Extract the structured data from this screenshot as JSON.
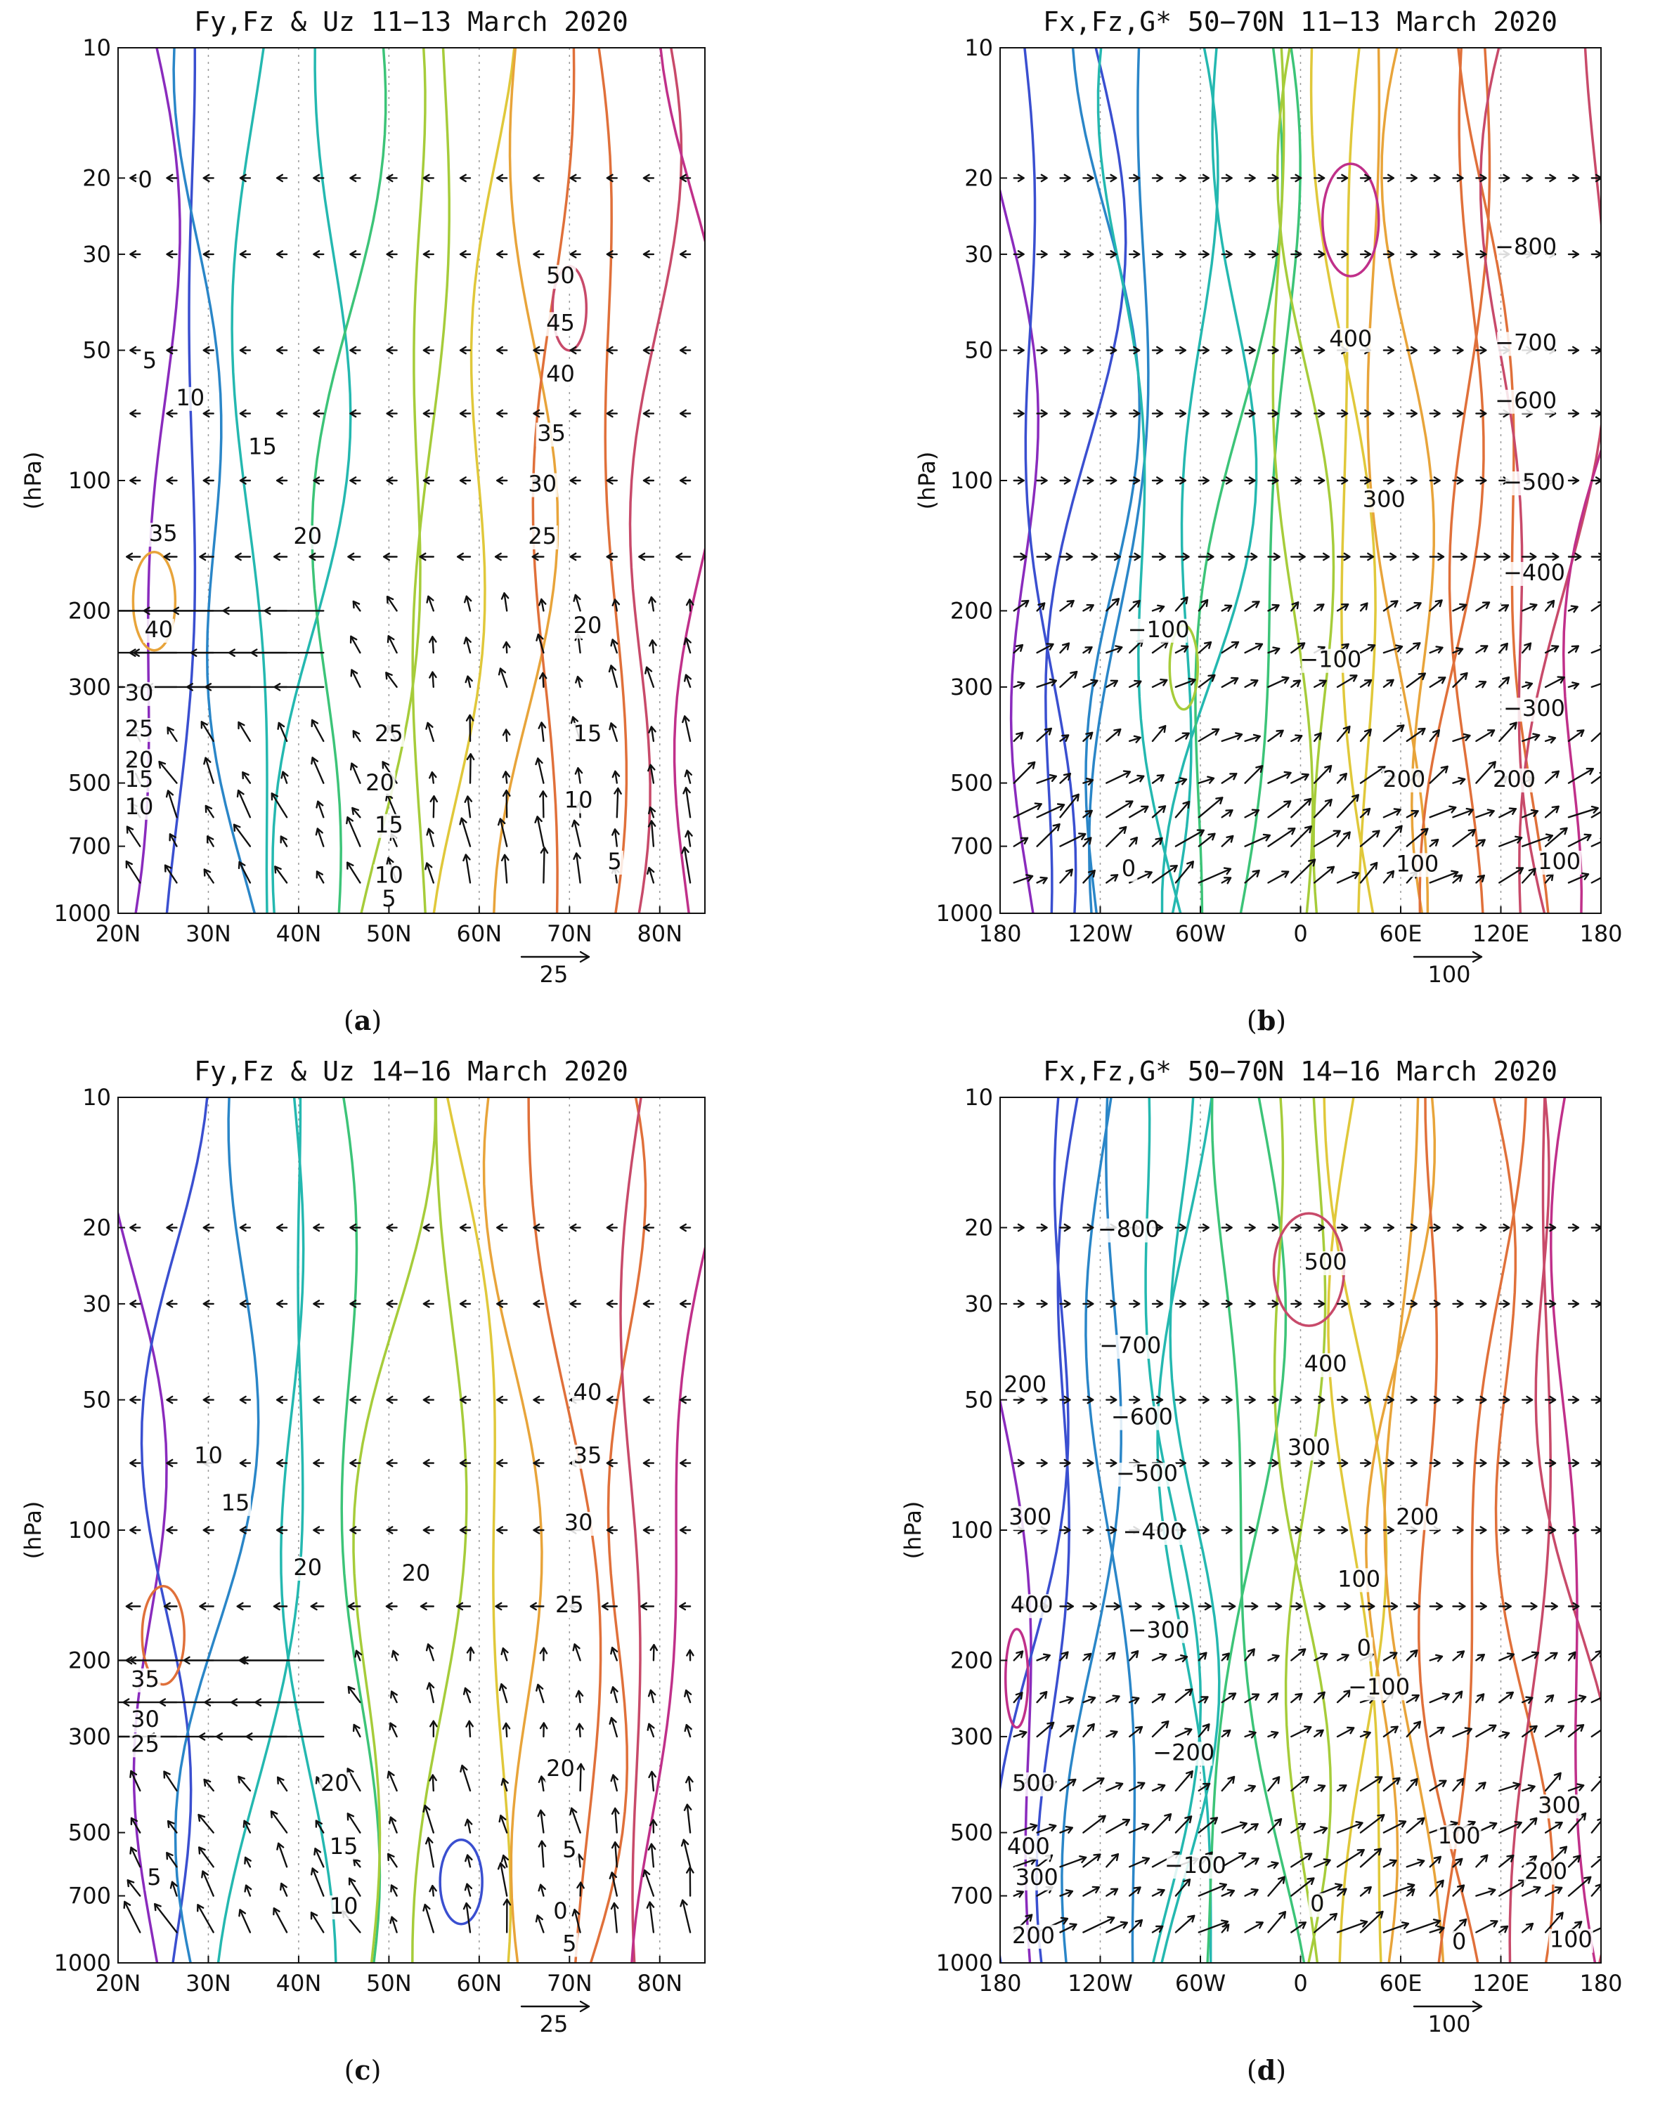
{
  "chart_data": [
    {
      "id": "a",
      "type": "contour",
      "title": "Fy,Fz & Uz 11−13 March 2020",
      "panel_label": "a",
      "xlabel": "",
      "ylabel": "(hPa)",
      "x_ticks": [
        "20N",
        "30N",
        "40N",
        "50N",
        "60N",
        "70N",
        "80N"
      ],
      "x_tick_values": [
        20,
        30,
        40,
        50,
        60,
        70,
        80
      ],
      "xlim": [
        20,
        85
      ],
      "y_ticks": [
        "10",
        "20",
        "30",
        "50",
        "100",
        "200",
        "300",
        "500",
        "700",
        "1000"
      ],
      "y_tick_values": [
        10,
        20,
        30,
        50,
        100,
        200,
        300,
        500,
        700,
        1000
      ],
      "ylim": [
        1000,
        10
      ],
      "y_scale": "log",
      "contour_labels": [
        {
          "text": "0",
          "x": 23,
          "p": 21
        },
        {
          "text": "5",
          "x": 23.5,
          "p": 55
        },
        {
          "text": "10",
          "x": 28,
          "p": 67
        },
        {
          "text": "15",
          "x": 36,
          "p": 87
        },
        {
          "text": "20",
          "x": 41,
          "p": 140
        },
        {
          "text": "25",
          "x": 67,
          "p": 140
        },
        {
          "text": "30",
          "x": 67,
          "p": 106
        },
        {
          "text": "35",
          "x": 68,
          "p": 81
        },
        {
          "text": "40",
          "x": 69,
          "p": 59
        },
        {
          "text": "45",
          "x": 69,
          "p": 45
        },
        {
          "text": "50",
          "x": 69,
          "p": 35
        },
        {
          "text": "35",
          "x": 25,
          "p": 138
        },
        {
          "text": "40",
          "x": 24.5,
          "p": 230
        },
        {
          "text": "30",
          "x": 22,
          "p": 322
        },
        {
          "text": "25",
          "x": 22,
          "p": 390
        },
        {
          "text": "20",
          "x": 21.5,
          "p": 460
        },
        {
          "text": "15",
          "x": 21,
          "p": 510
        },
        {
          "text": "10",
          "x": 21,
          "p": 590
        },
        {
          "text": "20",
          "x": 72,
          "p": 225
        },
        {
          "text": "25",
          "x": 50,
          "p": 400
        },
        {
          "text": "20",
          "x": 49,
          "p": 520
        },
        {
          "text": "15",
          "x": 50,
          "p": 650
        },
        {
          "text": "10",
          "x": 50,
          "p": 850
        },
        {
          "text": "5",
          "x": 50,
          "p": 970
        },
        {
          "text": "15",
          "x": 72,
          "p": 400
        },
        {
          "text": "10",
          "x": 71,
          "p": 570
        },
        {
          "text": "5",
          "x": 75,
          "p": 790
        }
      ],
      "reference_vector": {
        "label": "25"
      },
      "contour_levels": [
        0,
        5,
        10,
        15,
        20,
        25,
        30,
        35,
        40,
        45,
        50
      ]
    },
    {
      "id": "b",
      "type": "contour",
      "title": "Fx,Fz,G* 50−70N 11−13 March 2020",
      "panel_label": "b",
      "xlabel": "",
      "ylabel": "(hPa)",
      "x_ticks": [
        "180",
        "120W",
        "60W",
        "0",
        "60E",
        "120E",
        "180"
      ],
      "x_tick_values": [
        -180,
        -120,
        -60,
        0,
        60,
        120,
        180
      ],
      "xlim": [
        -180,
        180
      ],
      "y_ticks": [
        "10",
        "20",
        "30",
        "50",
        "100",
        "200",
        "300",
        "500",
        "700",
        "1000"
      ],
      "y_tick_values": [
        10,
        20,
        30,
        50,
        100,
        200,
        300,
        500,
        700,
        1000
      ],
      "ylim": [
        1000,
        10
      ],
      "y_scale": "log",
      "contour_labels": [
        {
          "text": "−800",
          "x": 135,
          "p": 30
        },
        {
          "text": "−700",
          "x": 135,
          "p": 50
        },
        {
          "text": "−600",
          "x": 135,
          "p": 68
        },
        {
          "text": "−500",
          "x": 140,
          "p": 105
        },
        {
          "text": "−400",
          "x": 140,
          "p": 170
        },
        {
          "text": "−300",
          "x": 140,
          "p": 350
        },
        {
          "text": "400",
          "x": 30,
          "p": 49
        },
        {
          "text": "300",
          "x": 50,
          "p": 115
        },
        {
          "text": "−100",
          "x": -85,
          "p": 230
        },
        {
          "text": "−100",
          "x": 18,
          "p": 270
        },
        {
          "text": "200",
          "x": 62,
          "p": 510
        },
        {
          "text": "200",
          "x": 128,
          "p": 510
        },
        {
          "text": "100",
          "x": 70,
          "p": 800
        },
        {
          "text": "100",
          "x": 155,
          "p": 790
        },
        {
          "text": "0",
          "x": -103,
          "p": 820
        }
      ],
      "reference_vector": {
        "label": "100"
      },
      "contour_levels": [
        -800,
        -700,
        -600,
        -500,
        -400,
        -300,
        -200,
        -100,
        0,
        100,
        200,
        300,
        400
      ]
    },
    {
      "id": "c",
      "type": "contour",
      "title": "Fy,Fz & Uz 14−16 March 2020",
      "panel_label": "c",
      "xlabel": "",
      "ylabel": "(hPa)",
      "x_ticks": [
        "20N",
        "30N",
        "40N",
        "50N",
        "60N",
        "70N",
        "80N"
      ],
      "x_tick_values": [
        20,
        30,
        40,
        50,
        60,
        70,
        80
      ],
      "xlim": [
        20,
        85
      ],
      "y_ticks": [
        "10",
        "20",
        "30",
        "50",
        "100",
        "200",
        "300",
        "500",
        "700",
        "1000"
      ],
      "y_tick_values": [
        10,
        20,
        30,
        50,
        100,
        200,
        300,
        500,
        700,
        1000
      ],
      "ylim": [
        1000,
        10
      ],
      "y_scale": "log",
      "contour_labels": [
        {
          "text": "40",
          "x": 72,
          "p": 50
        },
        {
          "text": "35",
          "x": 72,
          "p": 70
        },
        {
          "text": "30",
          "x": 71,
          "p": 100
        },
        {
          "text": "25",
          "x": 70,
          "p": 155
        },
        {
          "text": "20",
          "x": 69,
          "p": 370
        },
        {
          "text": "10",
          "x": 30,
          "p": 70
        },
        {
          "text": "15",
          "x": 33,
          "p": 90
        },
        {
          "text": "20",
          "x": 41,
          "p": 127
        },
        {
          "text": "20",
          "x": 53,
          "p": 131
        },
        {
          "text": "35",
          "x": 23,
          "p": 230
        },
        {
          "text": "30",
          "x": 23,
          "p": 285
        },
        {
          "text": "25",
          "x": 23,
          "p": 325
        },
        {
          "text": "20",
          "x": 44,
          "p": 400
        },
        {
          "text": "15",
          "x": 45,
          "p": 560
        },
        {
          "text": "10",
          "x": 45,
          "p": 770
        },
        {
          "text": "5",
          "x": 70,
          "p": 570
        },
        {
          "text": "0",
          "x": 69,
          "p": 790
        },
        {
          "text": "5",
          "x": 70,
          "p": 940
        },
        {
          "text": "5",
          "x": 24,
          "p": 660
        }
      ],
      "reference_vector": {
        "label": "25"
      },
      "contour_levels": [
        0,
        5,
        10,
        15,
        20,
        25,
        30,
        35,
        40
      ]
    },
    {
      "id": "d",
      "type": "contour",
      "title": "Fx,Fz,G* 50−70N 14−16 March 2020",
      "panel_label": "d",
      "xlabel": "",
      "ylabel": "(hPa)",
      "x_ticks": [
        "180",
        "120W",
        "60W",
        "0",
        "60E",
        "120E",
        "180"
      ],
      "x_tick_values": [
        -180,
        -120,
        -60,
        0,
        60,
        120,
        180
      ],
      "xlim": [
        -180,
        180
      ],
      "y_ticks": [
        "10",
        "20",
        "30",
        "50",
        "100",
        "200",
        "300",
        "500",
        "700",
        "1000"
      ],
      "y_tick_values": [
        10,
        20,
        30,
        50,
        100,
        200,
        300,
        500,
        700,
        1000
      ],
      "ylim": [
        1000,
        10
      ],
      "y_scale": "log",
      "contour_labels": [
        {
          "text": "−800",
          "x": -103,
          "p": 21
        },
        {
          "text": "−700",
          "x": -102,
          "p": 39
        },
        {
          "text": "−600",
          "x": -95,
          "p": 57
        },
        {
          "text": "−500",
          "x": -92,
          "p": 77
        },
        {
          "text": "−400",
          "x": -88,
          "p": 105
        },
        {
          "text": "−300",
          "x": -85,
          "p": 177
        },
        {
          "text": "−200",
          "x": -70,
          "p": 340
        },
        {
          "text": "−100",
          "x": -63,
          "p": 620
        },
        {
          "text": "−100",
          "x": 47,
          "p": 240
        },
        {
          "text": "500",
          "x": 15,
          "p": 25
        },
        {
          "text": "400",
          "x": 15,
          "p": 43
        },
        {
          "text": "300",
          "x": 5,
          "p": 67
        },
        {
          "text": "200",
          "x": 70,
          "p": 97
        },
        {
          "text": "100",
          "x": 35,
          "p": 135
        },
        {
          "text": "0",
          "x": 38,
          "p": 195
        },
        {
          "text": "200",
          "x": -165,
          "p": 48
        },
        {
          "text": "300",
          "x": -162,
          "p": 97
        },
        {
          "text": "400",
          "x": -161,
          "p": 155
        },
        {
          "text": "500",
          "x": -160,
          "p": 400
        },
        {
          "text": "400",
          "x": -163,
          "p": 560
        },
        {
          "text": "300",
          "x": -158,
          "p": 660
        },
        {
          "text": "200",
          "x": -160,
          "p": 900
        },
        {
          "text": "0",
          "x": 10,
          "p": 760
        },
        {
          "text": "100",
          "x": 95,
          "p": 530
        },
        {
          "text": "200",
          "x": 147,
          "p": 640
        },
        {
          "text": "300",
          "x": 155,
          "p": 450
        },
        {
          "text": "100",
          "x": 162,
          "p": 920
        },
        {
          "text": "0",
          "x": 95,
          "p": 930
        }
      ],
      "reference_vector": {
        "label": "100"
      },
      "contour_levels": [
        -800,
        -700,
        -600,
        -500,
        -400,
        -300,
        -200,
        -100,
        0,
        100,
        200,
        300,
        400,
        500
      ]
    }
  ],
  "colors": {
    "palette": [
      "#8a2bbd",
      "#3a4fd0",
      "#2a86c8",
      "#24b8b0",
      "#3cc478",
      "#a6cc3a",
      "#e0c83a",
      "#e8a43a",
      "#e0703a",
      "#c84a6a",
      "#c0308a"
    ],
    "axis": "#111111"
  }
}
